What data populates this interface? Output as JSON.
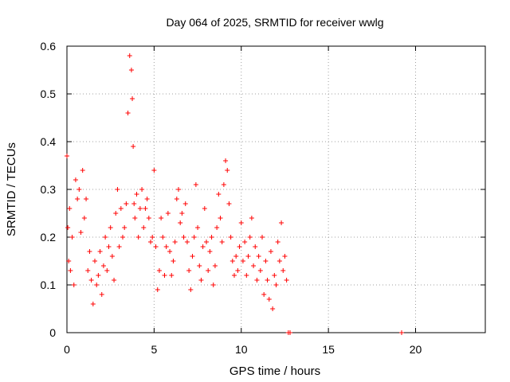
{
  "chart_data": {
    "type": "scatter",
    "title": "Day 064 of 2025, SRMTID for receiver wwlg",
    "xlabel": "GPS time / hours",
    "ylabel": "SRMTID / TECUs",
    "xlim": [
      0,
      24
    ],
    "ylim": [
      0,
      0.6
    ],
    "xticks": [
      0,
      5,
      10,
      15,
      20
    ],
    "yticks": [
      0,
      0.1,
      0.2,
      0.3,
      0.4,
      0.5,
      0.6
    ],
    "xtick_labels": [
      "0",
      "5",
      "10",
      "15",
      "20"
    ],
    "ytick_labels": [
      "0",
      "0.1",
      "0.2",
      "0.3",
      "0.4",
      "0.5",
      "0.6"
    ],
    "grid": true,
    "marker": "+",
    "color": "#ff0000",
    "series": [
      {
        "name": "SRMTID",
        "x": [
          0.0,
          0.05,
          0.1,
          0.15,
          0.2,
          0.3,
          0.4,
          0.5,
          0.6,
          0.7,
          0.8,
          0.9,
          1.0,
          1.1,
          1.2,
          1.3,
          1.4,
          1.5,
          1.6,
          1.7,
          1.8,
          1.9,
          2.0,
          2.1,
          2.2,
          2.3,
          2.4,
          2.5,
          2.6,
          2.7,
          2.8,
          2.9,
          3.0,
          3.1,
          3.2,
          3.3,
          3.4,
          3.5,
          3.6,
          3.7,
          3.75,
          3.8,
          3.85,
          3.9,
          4.0,
          4.1,
          4.2,
          4.3,
          4.4,
          4.5,
          4.6,
          4.7,
          4.8,
          4.9,
          5.0,
          5.1,
          5.2,
          5.3,
          5.4,
          5.5,
          5.6,
          5.7,
          5.8,
          5.9,
          6.0,
          6.1,
          6.2,
          6.3,
          6.4,
          6.5,
          6.6,
          6.7,
          6.8,
          6.9,
          7.0,
          7.1,
          7.2,
          7.3,
          7.4,
          7.5,
          7.6,
          7.7,
          7.8,
          7.9,
          8.0,
          8.1,
          8.2,
          8.3,
          8.4,
          8.5,
          8.6,
          8.7,
          8.8,
          8.9,
          9.0,
          9.1,
          9.2,
          9.3,
          9.4,
          9.5,
          9.6,
          9.7,
          9.8,
          9.9,
          10.0,
          10.1,
          10.2,
          10.3,
          10.4,
          10.5,
          10.6,
          10.7,
          10.8,
          10.9,
          11.0,
          11.1,
          11.2,
          11.3,
          11.4,
          11.5,
          11.6,
          11.7,
          11.8,
          11.9,
          12.0,
          12.1,
          12.2,
          12.3,
          12.4,
          12.5,
          12.6,
          12.7,
          12.8,
          19.2
        ],
        "y": [
          0.37,
          0.22,
          0.15,
          0.26,
          0.13,
          0.2,
          0.1,
          0.32,
          0.28,
          0.3,
          0.21,
          0.34,
          0.24,
          0.28,
          0.13,
          0.17,
          0.11,
          0.06,
          0.15,
          0.1,
          0.12,
          0.17,
          0.08,
          0.14,
          0.2,
          0.13,
          0.18,
          0.22,
          0.16,
          0.11,
          0.25,
          0.3,
          0.18,
          0.26,
          0.2,
          0.22,
          0.27,
          0.46,
          0.58,
          0.55,
          0.49,
          0.39,
          0.27,
          0.24,
          0.29,
          0.2,
          0.26,
          0.3,
          0.22,
          0.26,
          0.28,
          0.24,
          0.19,
          0.2,
          0.34,
          0.18,
          0.09,
          0.13,
          0.24,
          0.2,
          0.12,
          0.18,
          0.25,
          0.17,
          0.12,
          0.15,
          0.19,
          0.28,
          0.3,
          0.23,
          0.25,
          0.2,
          0.27,
          0.19,
          0.13,
          0.09,
          0.16,
          0.2,
          0.31,
          0.22,
          0.14,
          0.11,
          0.18,
          0.26,
          0.19,
          0.13,
          0.17,
          0.2,
          0.1,
          0.14,
          0.22,
          0.29,
          0.24,
          0.19,
          0.31,
          0.36,
          0.34,
          0.27,
          0.2,
          0.15,
          0.12,
          0.16,
          0.13,
          0.18,
          0.23,
          0.15,
          0.19,
          0.12,
          0.16,
          0.2,
          0.24,
          0.14,
          0.18,
          0.11,
          0.16,
          0.13,
          0.2,
          0.08,
          0.15,
          0.11,
          0.07,
          0.17,
          0.05,
          0.12,
          0.1,
          0.19,
          0.15,
          0.23,
          0.13,
          0.16,
          0.11,
          0.0,
          0.0,
          0.0
        ]
      }
    ]
  }
}
